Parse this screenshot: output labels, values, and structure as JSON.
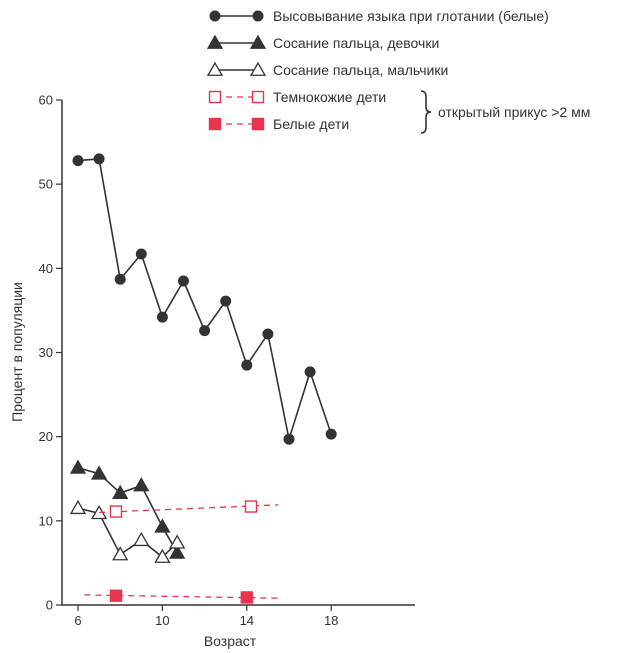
{
  "chart_data": {
    "type": "line",
    "xlabel": "Возраст",
    "ylabel": "Процент в популяции",
    "xlim": [
      5.5,
      22
    ],
    "ylim": [
      0,
      60
    ],
    "x_ticks": [
      6,
      10,
      14,
      18
    ],
    "y_ticks": [
      0,
      10,
      20,
      30,
      40,
      50,
      60
    ],
    "legend_position": "top-right",
    "brace_label": "открытый прикус >2 мм",
    "series": [
      {
        "name": "Высовывание языка при глотании (белые)",
        "marker": "circle-filled",
        "line": "solid",
        "color": "#333333",
        "x": [
          6,
          7,
          8,
          9,
          10,
          11,
          12,
          13,
          14,
          15,
          16,
          17,
          18
        ],
        "y": [
          52.8,
          53,
          38.7,
          41.7,
          34.2,
          38.5,
          32.6,
          36.1,
          28.5,
          32.2,
          19.7,
          27.7,
          20.3
        ]
      },
      {
        "name": "Сосание пальца, девочки",
        "marker": "triangle-filled",
        "line": "solid",
        "color": "#333333",
        "x": [
          6,
          7,
          8,
          9,
          10,
          10.7
        ],
        "y": [
          16.3,
          15.6,
          13.3,
          14.2,
          9.3,
          6.2
        ]
      },
      {
        "name": "Сосание пальца, мальчики",
        "marker": "triangle-open",
        "line": "solid",
        "color": "#333333",
        "x": [
          6,
          7,
          8,
          9,
          10,
          10.7
        ],
        "y": [
          11.5,
          10.9,
          6,
          7.7,
          5.7,
          7.4
        ]
      },
      {
        "name": "Темнокожие дети",
        "marker": "square-open",
        "line": "dashed",
        "color": "#e8344e",
        "x": [
          7.8,
          14.2
        ],
        "y": [
          11.1,
          11.7
        ],
        "line_x": [
          7,
          15.5
        ],
        "line_y": [
          11,
          11.9
        ]
      },
      {
        "name": "Белые дети",
        "marker": "square-filled",
        "line": "dashed",
        "color": "#e8344e",
        "x": [
          7.8,
          14
        ],
        "y": [
          1.1,
          0.9
        ],
        "line_x": [
          6.3,
          15.6
        ],
        "line_y": [
          1.2,
          0.8
        ]
      }
    ]
  }
}
